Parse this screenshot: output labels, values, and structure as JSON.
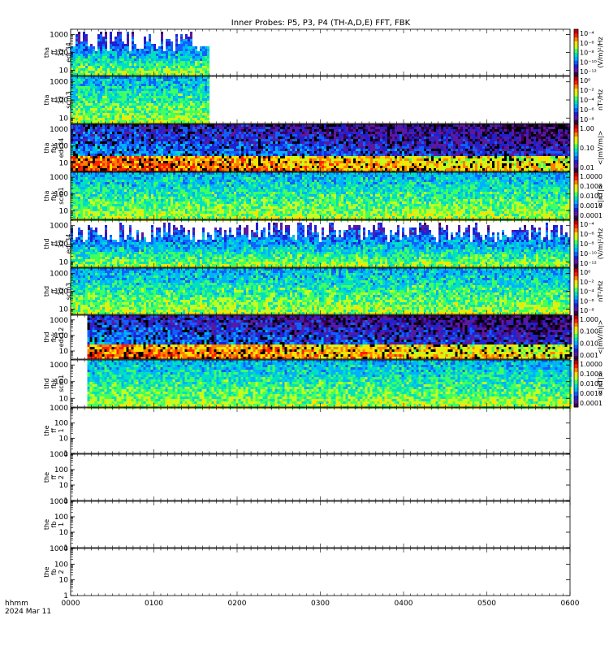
{
  "chart_data": {
    "type": "heatmap",
    "title": "Inner Probes: P5, P3, P4 (TH-A,D,E) FFT, FBK",
    "time_label": "hhmm",
    "date_label": "2024 Mar 11",
    "x_ticks": [
      "0000",
      "0100",
      "0200",
      "0300",
      "0400",
      "0500",
      "0600"
    ],
    "x_range_hours": [
      0,
      6
    ],
    "y_scale": "log",
    "panels": [
      {
        "id": "tha-ff32-edc34",
        "label": [
          "tha",
          "ff",
          "32",
          "edc34"
        ],
        "ylim": [
          5,
          2000
        ],
        "ticks": [
          "1000",
          "100",
          "10"
        ],
        "data_end_hours": 1.65,
        "colorbar": {
          "labels": [
            "10⁻⁴",
            "10⁻⁶",
            "10⁻⁸",
            "10⁻¹⁰",
            "10⁻¹²"
          ],
          "unit": "(V/m)²/Hz"
        }
      },
      {
        "id": "tha-ff32-scm3",
        "label": [
          "tha",
          "ff",
          "32",
          "scm3"
        ],
        "ylim": [
          5,
          2000
        ],
        "ticks": [
          "1000",
          "100",
          "10"
        ],
        "data_end_hours": 1.65,
        "colorbar": {
          "labels": [
            "10⁰",
            "10⁻²",
            "10⁻⁴",
            "10⁻⁶",
            "10⁻⁸"
          ],
          "unit": "nT²/Hz"
        }
      },
      {
        "id": "tha-fbk-edc34",
        "label": [
          "tha",
          "fbk",
          "edc34"
        ],
        "ylim": [
          3,
          2000
        ],
        "ticks": [
          "1000",
          "100",
          "10"
        ],
        "data_end_hours": 6.0,
        "colorbar": {
          "labels": [
            "1.00",
            "0.10",
            "0.01"
          ],
          "unit": "<|mV/m|>"
        }
      },
      {
        "id": "tha-fbk-scm1",
        "label": [
          "tha",
          "fbk",
          "scm1"
        ],
        "ylim": [
          3,
          2000
        ],
        "ticks": [
          "1000",
          "100",
          "10"
        ],
        "data_end_hours": 6.0,
        "colorbar": {
          "labels": [
            "1.0000",
            "0.1000",
            "0.0100",
            "0.0010",
            "0.0001"
          ],
          "unit": "<|nT|>"
        }
      },
      {
        "id": "thd-ff32-edc34",
        "label": [
          "thd",
          "ff",
          "32",
          "edc34"
        ],
        "ylim": [
          5,
          2000
        ],
        "ticks": [
          "1000",
          "100",
          "10"
        ],
        "data_end_hours": 6.0,
        "colorbar": {
          "labels": [
            "10⁻⁴",
            "10⁻⁶",
            "10⁻⁸",
            "10⁻¹⁰",
            "10⁻¹²"
          ],
          "unit": "(V/m)²/Hz"
        }
      },
      {
        "id": "thd-ff32-scm3",
        "label": [
          "thd",
          "ff",
          "32",
          "scm3"
        ],
        "ylim": [
          5,
          2000
        ],
        "ticks": [
          "1000",
          "100",
          "10"
        ],
        "data_end_hours": 6.0,
        "colorbar": {
          "labels": [
            "10⁰",
            "10⁻²",
            "10⁻⁴",
            "10⁻⁶",
            "10⁻⁸"
          ],
          "unit": "nT²/Hz"
        }
      },
      {
        "id": "thd-fbk-edc12",
        "label": [
          "thd",
          "fbk",
          "edc12"
        ],
        "ylim": [
          3,
          2000
        ],
        "ticks": [
          "1000",
          "100",
          "10"
        ],
        "data_start_hours": 0.2,
        "data_end_hours": 6.0,
        "colorbar": {
          "labels": [
            "1.000",
            "0.100",
            "0.010",
            "0.001"
          ],
          "unit": "<|mV/m|>"
        }
      },
      {
        "id": "thd-fbk-scm1",
        "label": [
          "thd",
          "fbk",
          "scm1"
        ],
        "ylim": [
          3,
          2000
        ],
        "ticks": [
          "1000",
          "100",
          "10"
        ],
        "data_start_hours": 0.2,
        "data_end_hours": 6.0,
        "colorbar": {
          "labels": [
            "1.0000",
            "0.1000",
            "0.0100",
            "0.0010",
            "0.0001"
          ],
          "unit": "<|nT|>"
        }
      },
      {
        "id": "the-ff-1",
        "label": [
          "the",
          "ff",
          "1"
        ],
        "ylim": [
          1,
          1000
        ],
        "ticks": [
          "1000",
          "100",
          "10",
          "1"
        ],
        "empty": true
      },
      {
        "id": "the-ff-2",
        "label": [
          "the",
          "ff",
          "2"
        ],
        "ylim": [
          1,
          1000
        ],
        "ticks": [
          "1000",
          "100",
          "10",
          "1"
        ],
        "empty": true
      },
      {
        "id": "the-fb-1",
        "label": [
          "the",
          "fb",
          "1"
        ],
        "ylim": [
          1,
          1000
        ],
        "ticks": [
          "1000",
          "100",
          "10",
          "1"
        ],
        "empty": true
      },
      {
        "id": "the-fb-2",
        "label": [
          "the",
          "fb",
          "2"
        ],
        "ylim": [
          1,
          1000
        ],
        "ticks": [
          "1000",
          "100",
          "10",
          "1"
        ],
        "empty": true
      }
    ]
  }
}
